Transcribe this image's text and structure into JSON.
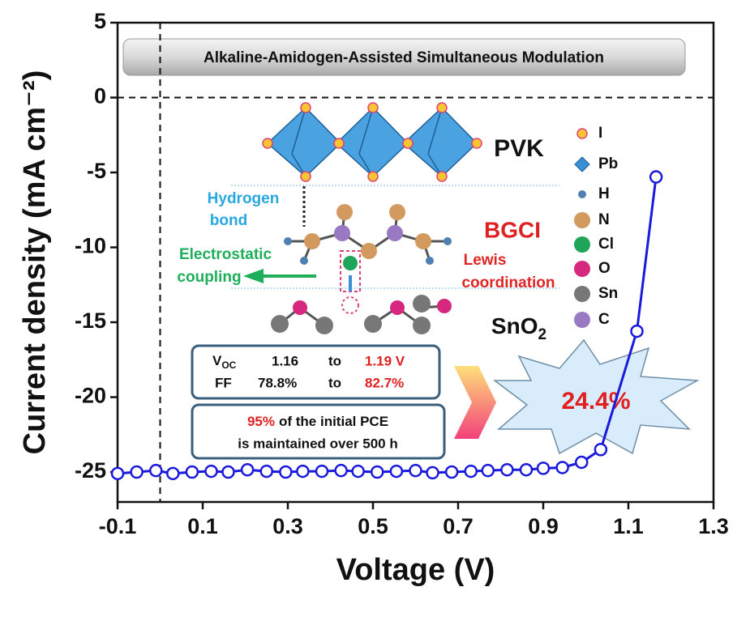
{
  "chart_data": {
    "type": "line",
    "xlabel": "Voltage (V)",
    "ylabel": "Current density (mA cm⁻²)",
    "xlim": [
      -0.1,
      1.3
    ],
    "ylim": [
      -27,
      5
    ],
    "xticks": [
      -0.1,
      0.1,
      0.3,
      0.5,
      0.7,
      0.9,
      1.1,
      1.3
    ],
    "yticks": [
      5,
      0,
      -5,
      -10,
      -15,
      -20,
      -25
    ],
    "hlines": [
      0
    ],
    "vlines": [
      0
    ],
    "series": [
      {
        "name": "BGCI",
        "color": "#1a1adc",
        "x": [
          -0.1,
          -0.055,
          -0.01,
          0.03,
          0.075,
          0.12,
          0.16,
          0.205,
          0.25,
          0.295,
          0.335,
          0.38,
          0.425,
          0.465,
          0.51,
          0.555,
          0.6,
          0.64,
          0.685,
          0.73,
          0.77,
          0.815,
          0.86,
          0.9,
          0.945,
          0.99,
          1.035,
          1.12,
          1.165
        ],
        "values": [
          -25.1,
          -25.0,
          -24.9,
          -25.1,
          -25.0,
          -24.95,
          -25.0,
          -24.85,
          -24.95,
          -25.0,
          -24.95,
          -24.95,
          -24.9,
          -24.95,
          -25.0,
          -24.95,
          -24.9,
          -25.05,
          -25.0,
          -24.95,
          -24.9,
          -24.85,
          -24.85,
          -24.75,
          -24.7,
          -24.35,
          -23.5,
          -15.6,
          -5.3
        ]
      }
    ]
  },
  "inset": {
    "banner": "Alkaline-Amidogen-Assisted Simultaneous Modulation",
    "pvk": "PVK",
    "bgci": "BGCI",
    "sno2": {
      "text": "SnO",
      "sub": "2"
    },
    "hydrogen_bond": [
      "Hydrogen",
      "bond"
    ],
    "electrostatic": [
      "Electrostatic",
      "coupling"
    ],
    "lewis": [
      "Lewis",
      "coordination"
    ],
    "atoms": [
      {
        "name": "I",
        "color": "#f7c531"
      },
      {
        "name": "Pb",
        "color": "#3a8fd6"
      },
      {
        "name": "H",
        "color": "#4f7fb3"
      },
      {
        "name": "N",
        "color": "#d39a60"
      },
      {
        "name": "Cl",
        "color": "#1fa55a"
      },
      {
        "name": "O",
        "color": "#d6287e"
      },
      {
        "name": "Sn",
        "color": "#777777"
      },
      {
        "name": "C",
        "color": "#9a79c4"
      }
    ],
    "voc": {
      "label": "V",
      "sub": "OC",
      "from": "1.16",
      "word": "to",
      "to": "1.19 V"
    },
    "ff": {
      "label": "FF",
      "from": "78.8%",
      "word": "to",
      "to": "82.7%"
    },
    "stability": {
      "highlight": "95%",
      "rest": "of the initial PCE",
      "line2": "is maintained over 500 h"
    },
    "pce": "24.4%"
  }
}
